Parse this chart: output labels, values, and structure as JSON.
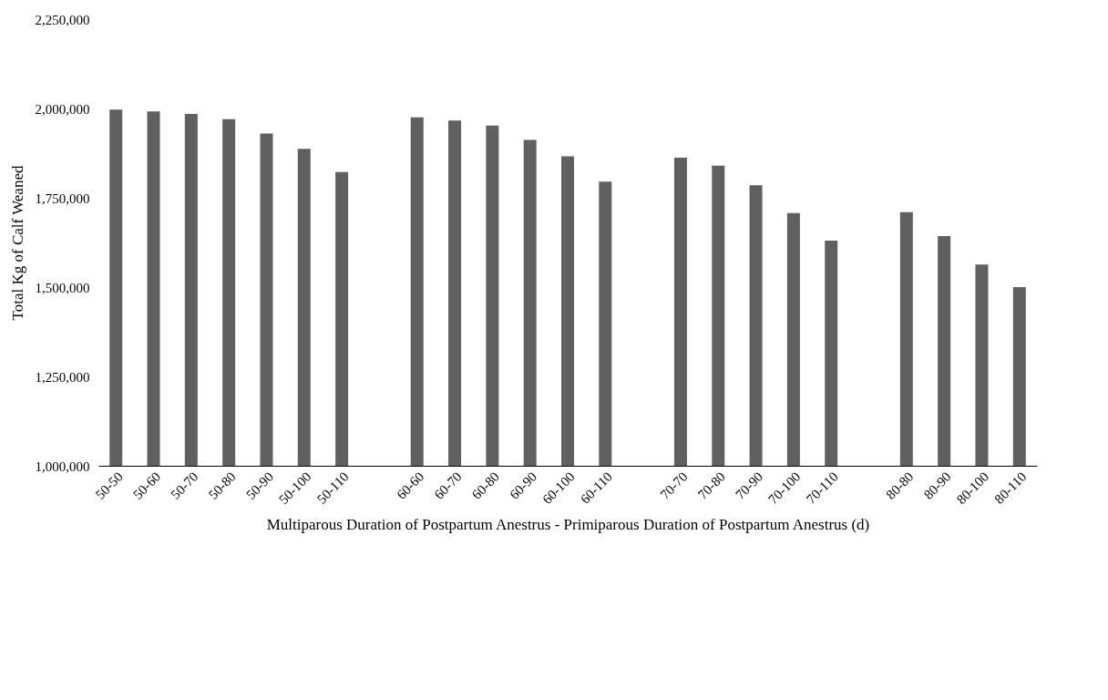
{
  "chart_data": {
    "type": "bar",
    "xlabel": "Multiparous Duration of Postpartum Anestrus - Primiparous Duration of Postpartum Anestrus (d)",
    "ylabel": "Total Kg of Calf Weaned",
    "categories": [
      "50-50",
      "50-60",
      "50-70",
      "50-80",
      "50-90",
      "50-100",
      "50-110",
      null,
      "60-60",
      "60-70",
      "60-80",
      "60-90",
      "60-100",
      "60-110",
      null,
      "70-70",
      "70-80",
      "70-90",
      "70-100",
      "70-110",
      null,
      "80-80",
      "80-90",
      "80-100",
      "80-110"
    ],
    "values": [
      1997000,
      1992000,
      1985000,
      1970000,
      1930000,
      1887000,
      1822000,
      null,
      1975000,
      1966000,
      1952000,
      1912000,
      1866000,
      1795000,
      null,
      1862000,
      1840000,
      1785000,
      1707000,
      1630000,
      null,
      1710000,
      1643000,
      1563000,
      1500000
    ],
    "color": "#606060",
    "ylim": [
      1000000,
      2250000
    ],
    "yticks": [
      {
        "value": 1000000,
        "label": "1,000,000"
      },
      {
        "value": 1250000,
        "label": "1,250,000"
      },
      {
        "value": 1500000,
        "label": "1,500,000"
      },
      {
        "value": 1750000,
        "label": "1,750,000"
      },
      {
        "value": 2000000,
        "label": "2,000,000"
      },
      {
        "value": 2250000,
        "label": "2,250,000"
      }
    ],
    "grid": false
  }
}
